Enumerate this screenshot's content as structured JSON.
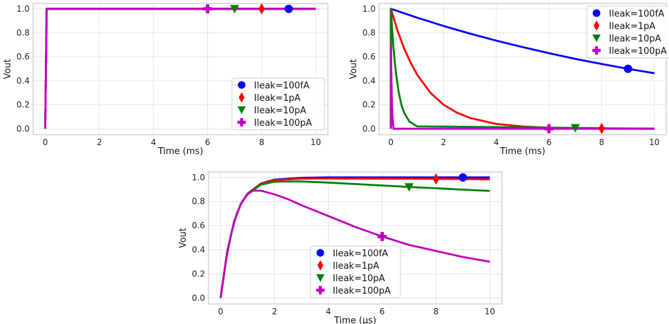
{
  "chart_data": [
    {
      "type": "line",
      "xlabel": "Time (ms)",
      "ylabel": "Vout",
      "xlim": [
        0,
        10
      ],
      "ylim": [
        0,
        1
      ],
      "xticks": [
        "0",
        "2",
        "4",
        "6",
        "8",
        "10"
      ],
      "yticks": [
        "0.0",
        "0.2",
        "0.4",
        "0.6",
        "0.8",
        "1.0"
      ],
      "grid": true,
      "legend_position": "lower-right",
      "series": [
        {
          "name": "Ileak=100fA",
          "color": "#0000ff",
          "marker": "circle",
          "marker_x": 9,
          "x": [
            0,
            0,
            0.05,
            10
          ],
          "y": [
            0,
            0.05,
            1.0,
            1.0
          ]
        },
        {
          "name": "Ileak=1pA",
          "color": "#ff0000",
          "marker": "diamond",
          "marker_x": 8,
          "x": [
            0,
            0,
            0.05,
            10
          ],
          "y": [
            0,
            0.05,
            1.0,
            1.0
          ]
        },
        {
          "name": "Ileak=10pA",
          "color": "#008000",
          "marker": "triangle-down",
          "marker_x": 7,
          "x": [
            0,
            0,
            0.05,
            10
          ],
          "y": [
            0,
            0.05,
            1.0,
            1.0
          ]
        },
        {
          "name": "Ileak=100pA",
          "color": "#c000c0",
          "marker": "plus",
          "marker_x": 6,
          "x": [
            0,
            0,
            0.05,
            10
          ],
          "y": [
            0,
            0.05,
            1.0,
            1.0
          ]
        }
      ]
    },
    {
      "type": "line",
      "xlabel": "Time (ms)",
      "ylabel": "Vout",
      "xlim": [
        0,
        10
      ],
      "ylim": [
        0,
        1
      ],
      "xticks": [
        "0",
        "2",
        "4",
        "6",
        "8",
        "10"
      ],
      "yticks": [
        "0.0",
        "0.2",
        "0.4",
        "0.6",
        "0.8",
        "1.0"
      ],
      "grid": true,
      "legend_position": "top-right",
      "series": [
        {
          "name": "Ileak=100fA",
          "color": "#0000ff",
          "marker": "circle",
          "marker_x": 9,
          "x": [
            0,
            0,
            1,
            2,
            3,
            4,
            5,
            6,
            7,
            8,
            9,
            10
          ],
          "y": [
            0,
            1.0,
            0.926,
            0.857,
            0.794,
            0.735,
            0.681,
            0.63,
            0.583,
            0.54,
            0.5,
            0.463
          ]
        },
        {
          "name": "Ileak=1pA",
          "color": "#ff0000",
          "marker": "diamond",
          "marker_x": 8,
          "x": [
            0,
            0,
            0.25,
            0.5,
            0.75,
            1,
            1.5,
            2,
            2.5,
            3,
            4,
            5,
            6,
            7,
            8,
            10
          ],
          "y": [
            0,
            1.0,
            0.82,
            0.67,
            0.55,
            0.45,
            0.3,
            0.2,
            0.135,
            0.09,
            0.04,
            0.018,
            0.008,
            0.004,
            0.002,
            0.0
          ]
        },
        {
          "name": "Ileak=10pA",
          "color": "#008000",
          "marker": "triangle-down",
          "marker_x": 7,
          "x": [
            0,
            0,
            0.05,
            0.1,
            0.15,
            0.2,
            0.3,
            0.4,
            0.5,
            0.7,
            1,
            10
          ],
          "y": [
            0,
            1.0,
            0.82,
            0.67,
            0.55,
            0.45,
            0.3,
            0.2,
            0.135,
            0.06,
            0.02,
            0.0
          ]
        },
        {
          "name": "Ileak=100pA",
          "color": "#c000c0",
          "marker": "plus",
          "marker_x": 6,
          "x": [
            0,
            0,
            0.03,
            0.06,
            0.1,
            10
          ],
          "y": [
            0,
            0.7,
            0.3,
            0.1,
            0.0,
            0.0
          ]
        }
      ]
    },
    {
      "type": "line",
      "xlabel": "Time (μs)",
      "ylabel": "Vout",
      "xlim": [
        0,
        10
      ],
      "ylim": [
        0,
        1
      ],
      "xticks": [
        "0",
        "2",
        "4",
        "6",
        "8",
        "10"
      ],
      "yticks": [
        "0.0",
        "0.2",
        "0.4",
        "0.6",
        "0.8",
        "1.0"
      ],
      "grid": true,
      "legend_position": "lower-center",
      "series": [
        {
          "name": "Ileak=100fA",
          "color": "#0000ff",
          "marker": "circle",
          "marker_x": 9,
          "x": [
            0,
            0.25,
            0.5,
            0.75,
            1,
            1.5,
            2,
            3,
            4,
            6,
            8,
            10
          ],
          "y": [
            0,
            0.39,
            0.63,
            0.78,
            0.865,
            0.95,
            0.982,
            0.997,
            1.0,
            1.0,
            1.0,
            1.0
          ]
        },
        {
          "name": "Ileak=1pA",
          "color": "#ff0000",
          "marker": "diamond",
          "marker_x": 8,
          "x": [
            0,
            0.25,
            0.5,
            0.75,
            1,
            1.5,
            2,
            3,
            4,
            6,
            8,
            10
          ],
          "y": [
            0,
            0.39,
            0.63,
            0.78,
            0.864,
            0.948,
            0.978,
            0.99,
            0.991,
            0.99,
            0.988,
            0.985
          ]
        },
        {
          "name": "Ileak=10pA",
          "color": "#008000",
          "marker": "triangle-down",
          "marker_x": 7,
          "x": [
            0,
            0.25,
            0.5,
            0.75,
            1,
            1.5,
            2,
            3,
            4,
            5,
            6,
            7,
            8,
            9,
            10
          ],
          "y": [
            0,
            0.39,
            0.63,
            0.78,
            0.86,
            0.94,
            0.965,
            0.967,
            0.957,
            0.945,
            0.933,
            0.921,
            0.91,
            0.899,
            0.888
          ]
        },
        {
          "name": "Ileak=100pA",
          "color": "#c000c0",
          "marker": "plus",
          "marker_x": 6,
          "x": [
            0,
            0.2,
            0.4,
            0.6,
            0.8,
            1,
            1.2,
            1.5,
            2,
            2.5,
            3,
            4,
            5,
            6,
            7,
            8,
            9,
            10
          ],
          "y": [
            0,
            0.31,
            0.54,
            0.7,
            0.8,
            0.86,
            0.89,
            0.89,
            0.86,
            0.82,
            0.77,
            0.68,
            0.59,
            0.51,
            0.44,
            0.39,
            0.34,
            0.3
          ]
        }
      ]
    }
  ]
}
